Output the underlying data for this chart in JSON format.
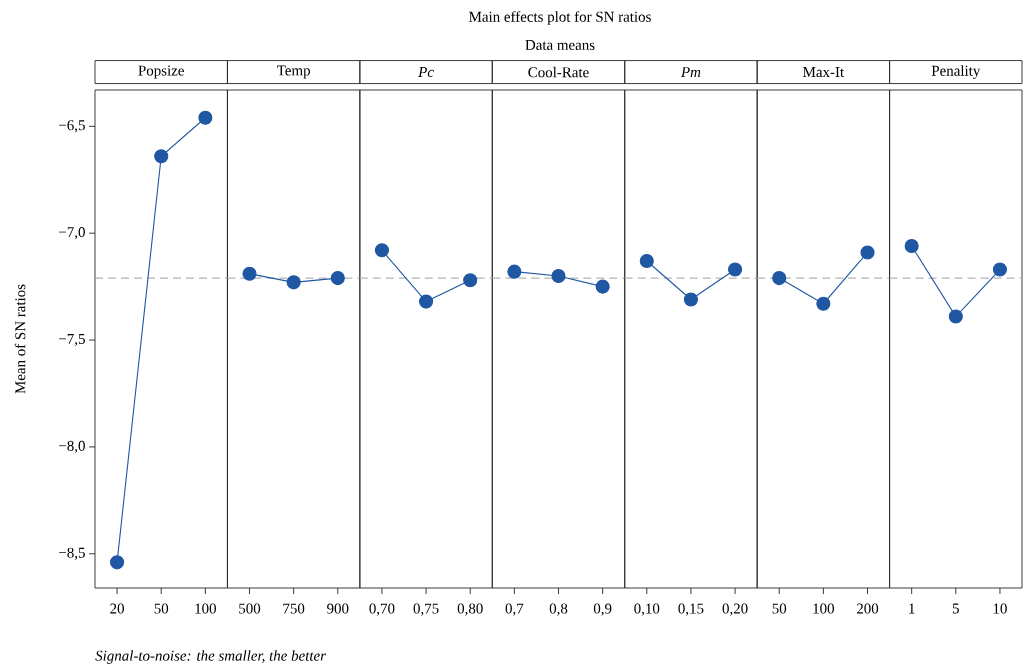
{
  "chart_data": [
    {
      "type": "line",
      "title": "Popsize",
      "ylabel": "Mean of SN ratios",
      "annotations": [
        "Main effects plot for SN ratios",
        "Data means",
        "*Signal-to-noise: the smaller, the better*"
      ],
      "categories": [
        "20",
        "50",
        "100"
      ],
      "values": [
        -8.54,
        -6.64,
        -6.46
      ],
      "color": "#1f57a3",
      "marker": "circle",
      "ylim": [
        -8.66,
        -6.33
      ],
      "yticks": [
        {
          "value": -6.5,
          "label": "−6,5"
        },
        {
          "value": -7.0,
          "label": "−7,0"
        },
        {
          "value": -7.5,
          "label": "−7,5"
        },
        {
          "value": -8.0,
          "label": "−8,0"
        },
        {
          "value": -8.5,
          "label": "−8,5"
        }
      ],
      "ref_lines": [
        {
          "axis": "y",
          "value": -7.21,
          "color": "#b4b4b4",
          "line_style": "dashed"
        }
      ]
    },
    {
      "type": "line",
      "title": "Temp",
      "categories": [
        "500",
        "750",
        "900"
      ],
      "values": [
        -7.19,
        -7.23,
        -7.21
      ],
      "color": "#1f57a3",
      "marker": "circle",
      "ylim": [
        -8.66,
        -6.33
      ],
      "tick_labels": "x",
      "ref_lines": [
        {
          "axis": "y",
          "value": -7.21,
          "color": "#b4b4b4",
          "line_style": "dashed"
        }
      ]
    },
    {
      "type": "line",
      "title": "*Pc*",
      "categories": [
        "0,70",
        "0,75",
        "0,80"
      ],
      "values": [
        -7.08,
        -7.32,
        -7.22
      ],
      "color": "#1f57a3",
      "marker": "circle",
      "ylim": [
        -8.66,
        -6.33
      ],
      "tick_labels": "x",
      "ref_lines": [
        {
          "axis": "y",
          "value": -7.21,
          "color": "#b4b4b4",
          "line_style": "dashed"
        }
      ]
    },
    {
      "type": "line",
      "title": "Cool-Rate",
      "categories": [
        "0,7",
        "0,8",
        "0,9"
      ],
      "values": [
        -7.18,
        -7.2,
        -7.25
      ],
      "color": "#1f57a3",
      "marker": "circle",
      "ylim": [
        -8.66,
        -6.33
      ],
      "tick_labels": "x",
      "ref_lines": [
        {
          "axis": "y",
          "value": -7.21,
          "color": "#b4b4b4",
          "line_style": "dashed"
        }
      ]
    },
    {
      "type": "line",
      "title": "*Pm*",
      "categories": [
        "0,10",
        "0,15",
        "0,20"
      ],
      "values": [
        -7.13,
        -7.31,
        -7.17
      ],
      "color": "#1f57a3",
      "marker": "circle",
      "ylim": [
        -8.66,
        -6.33
      ],
      "tick_labels": "x",
      "ref_lines": [
        {
          "axis": "y",
          "value": -7.21,
          "color": "#b4b4b4",
          "line_style": "dashed"
        }
      ]
    },
    {
      "type": "line",
      "title": "Max-It",
      "categories": [
        "50",
        "100",
        "200"
      ],
      "values": [
        -7.21,
        -7.33,
        -7.09
      ],
      "color": "#1f57a3",
      "marker": "circle",
      "ylim": [
        -8.66,
        -6.33
      ],
      "tick_labels": "x",
      "ref_lines": [
        {
          "axis": "y",
          "value": -7.21,
          "color": "#b4b4b4",
          "line_style": "dashed"
        }
      ]
    },
    {
      "type": "line",
      "title": "Penality",
      "categories": [
        "1",
        "5",
        "10"
      ],
      "values": [
        -7.06,
        -7.39,
        -7.17
      ],
      "color": "#1f57a3",
      "marker": "circle",
      "ylim": [
        -8.66,
        -6.33
      ],
      "tick_labels": "x",
      "ref_lines": [
        {
          "axis": "y",
          "value": -7.21,
          "color": "#b4b4b4",
          "line_style": "dashed"
        }
      ]
    }
  ]
}
